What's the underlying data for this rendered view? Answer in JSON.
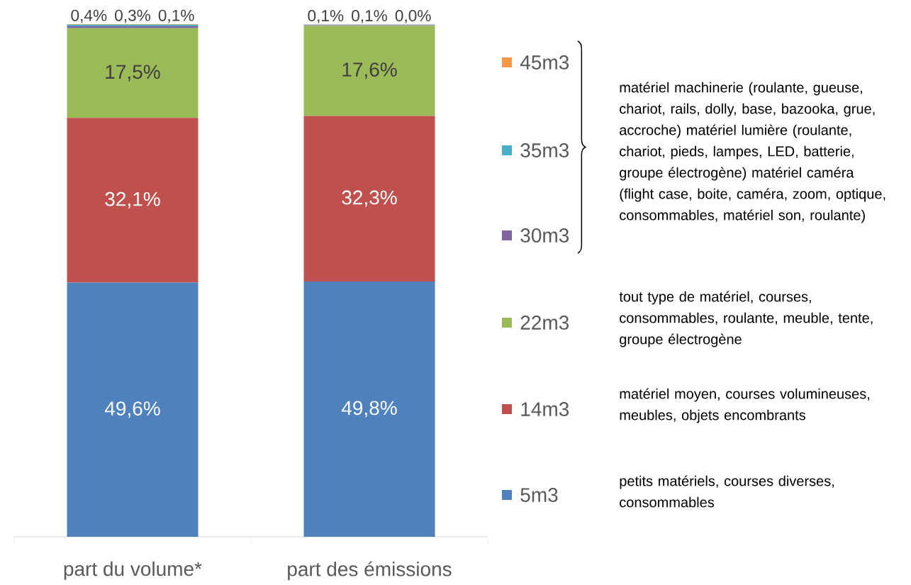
{
  "chart_data": {
    "type": "bar",
    "stacked": true,
    "legend": "right",
    "categories": [
      "part du volume*",
      "part des émissions"
    ],
    "series": [
      {
        "name": "5m3",
        "color": "#4f81bd",
        "values": [
          49.6,
          49.8
        ],
        "value_labels": [
          "49,6%",
          "49,8%"
        ]
      },
      {
        "name": "14m3",
        "color": "#c0504d",
        "values": [
          32.1,
          32.3
        ],
        "value_labels": [
          "32,1%",
          "32,3%"
        ]
      },
      {
        "name": "22m3",
        "color": "#9bbb59",
        "values": [
          17.5,
          17.6
        ],
        "value_labels": [
          "17,5%",
          "17,6%"
        ]
      },
      {
        "name": "30m3",
        "color": "#8064a2",
        "values": [
          0.4,
          0.1
        ],
        "value_labels": [
          "0,4%",
          "0,1%"
        ]
      },
      {
        "name": "35m3",
        "color": "#4bacc6",
        "values": [
          0.3,
          0.1
        ],
        "value_labels": [
          "0,3%",
          "0,1%"
        ]
      },
      {
        "name": "45m3",
        "color": "#f79646",
        "values": [
          0.1,
          0.04
        ],
        "value_labels": [
          "0,1%",
          "0,0%"
        ]
      }
    ],
    "annotations": [
      "matériel machinerie (roulante, gueuse, chariot, rails, dolly, base, bazooka, grue, accroche) matériel lumière (roulante, chariot, pieds, lampes, LED, batterie, groupe électrogène) matériel caméra (flight case, boite, caméra, zoom, optique, consommables, matériel son, roulante)",
      "tout type de matériel, courses, consommables, roulante, meuble, tente, groupe électrogène",
      "matériel moyen, courses volumineuses, meubles, objets encombrants",
      "petits matériels, courses diverses, consommables"
    ]
  }
}
